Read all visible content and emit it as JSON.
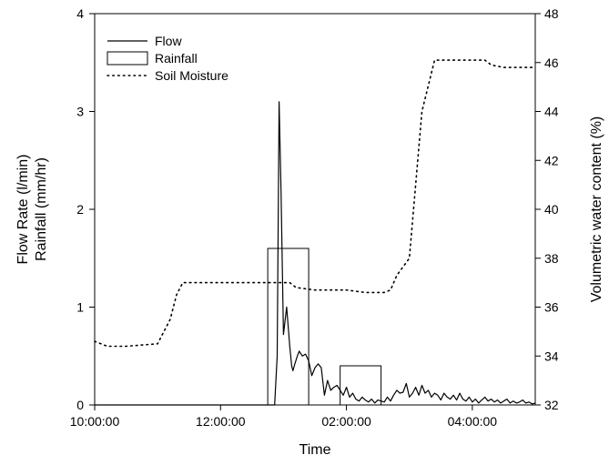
{
  "chart_data": {
    "type": "line",
    "x_axis": {
      "label": "Time",
      "unit": "hours",
      "range": [
        0,
        7
      ],
      "ticks": [
        0,
        2,
        4,
        6
      ],
      "tick_labels": [
        "10:00:00",
        "12:00:00",
        "02:00:00",
        "04:00:00"
      ]
    },
    "y_left": {
      "label_lines": [
        "Flow Rate (l/min)",
        "Rainfall (mm/hr)"
      ],
      "range": [
        0,
        4
      ],
      "ticks": [
        0,
        1,
        2,
        3,
        4
      ],
      "tick_labels": [
        "0",
        "1",
        "2",
        "3",
        "4"
      ]
    },
    "y_right": {
      "label": "Volumetric water content (%)",
      "range": [
        32,
        48
      ],
      "ticks": [
        32,
        34,
        36,
        38,
        40,
        42,
        44,
        46,
        48
      ],
      "tick_labels": [
        "32",
        "34",
        "36",
        "38",
        "40",
        "42",
        "44",
        "46",
        "48"
      ]
    },
    "legend": {
      "position": "top-left",
      "items": [
        {
          "label": "Flow",
          "style": "solid-line"
        },
        {
          "label": "Rainfall",
          "style": "box"
        },
        {
          "label": "Soil Moisture",
          "style": "dotted-line"
        }
      ]
    },
    "series": [
      {
        "name": "Flow",
        "axis": "left",
        "style": "solid",
        "x": [
          0.0,
          2.8,
          2.86,
          2.9,
          2.93,
          2.96,
          3.0,
          3.05,
          3.1,
          3.13,
          3.15,
          3.18,
          3.22,
          3.25,
          3.3,
          3.35,
          3.4,
          3.45,
          3.5,
          3.55,
          3.6,
          3.65,
          3.7,
          3.75,
          3.8,
          3.85,
          3.9,
          3.95,
          4.0,
          4.05,
          4.1,
          4.15,
          4.2,
          4.25,
          4.3,
          4.35,
          4.4,
          4.45,
          4.5,
          4.55,
          4.6,
          4.65,
          4.7,
          4.75,
          4.8,
          4.85,
          4.9,
          4.95,
          5.0,
          5.05,
          5.1,
          5.15,
          5.2,
          5.25,
          5.3,
          5.35,
          5.4,
          5.45,
          5.5,
          5.55,
          5.6,
          5.65,
          5.7,
          5.75,
          5.8,
          5.85,
          5.9,
          5.95,
          6.0,
          6.05,
          6.1,
          6.15,
          6.2,
          6.25,
          6.3,
          6.35,
          6.4,
          6.45,
          6.5,
          6.55,
          6.6,
          6.65,
          6.7,
          6.75,
          6.8,
          6.85,
          6.9,
          6.95,
          7.0
        ],
        "y": [
          0.0,
          0.0,
          0.0,
          0.5,
          3.1,
          2.2,
          0.72,
          1.0,
          0.6,
          0.4,
          0.35,
          0.42,
          0.5,
          0.55,
          0.5,
          0.52,
          0.45,
          0.3,
          0.38,
          0.42,
          0.38,
          0.1,
          0.25,
          0.15,
          0.18,
          0.2,
          0.15,
          0.1,
          0.18,
          0.08,
          0.12,
          0.06,
          0.04,
          0.08,
          0.05,
          0.03,
          0.06,
          0.02,
          0.05,
          0.04,
          0.03,
          0.08,
          0.04,
          0.1,
          0.15,
          0.12,
          0.13,
          0.22,
          0.08,
          0.12,
          0.18,
          0.1,
          0.2,
          0.12,
          0.15,
          0.08,
          0.12,
          0.1,
          0.05,
          0.12,
          0.08,
          0.06,
          0.1,
          0.05,
          0.12,
          0.06,
          0.04,
          0.08,
          0.03,
          0.06,
          0.02,
          0.05,
          0.08,
          0.04,
          0.06,
          0.03,
          0.05,
          0.02,
          0.04,
          0.06,
          0.02,
          0.04,
          0.02,
          0.03,
          0.05,
          0.02,
          0.03,
          0.01,
          0.02
        ]
      },
      {
        "name": "Rainfall",
        "axis": "left",
        "style": "box",
        "bars": [
          {
            "x_start": 2.75,
            "x_end": 3.4,
            "value": 1.6
          },
          {
            "x_start": 3.9,
            "x_end": 4.55,
            "value": 0.4
          }
        ]
      },
      {
        "name": "Soil Moisture",
        "axis": "right",
        "style": "dotted",
        "x": [
          0.0,
          0.2,
          0.5,
          1.0,
          1.2,
          1.3,
          1.4,
          1.7,
          2.0,
          2.5,
          2.9,
          3.1,
          3.2,
          3.5,
          3.7,
          4.0,
          4.3,
          4.6,
          4.7,
          4.8,
          5.0,
          5.2,
          5.4,
          5.5,
          5.7,
          6.0,
          6.2,
          6.3,
          6.5,
          6.7,
          7.0
        ],
        "y": [
          34.6,
          34.4,
          34.4,
          34.5,
          35.5,
          36.5,
          37.0,
          37.0,
          37.0,
          37.0,
          37.0,
          37.0,
          36.8,
          36.7,
          36.7,
          36.7,
          36.6,
          36.6,
          36.7,
          37.3,
          38.0,
          44.0,
          46.1,
          46.1,
          46.1,
          46.1,
          46.1,
          45.9,
          45.8,
          45.8,
          45.8
        ]
      }
    ]
  }
}
